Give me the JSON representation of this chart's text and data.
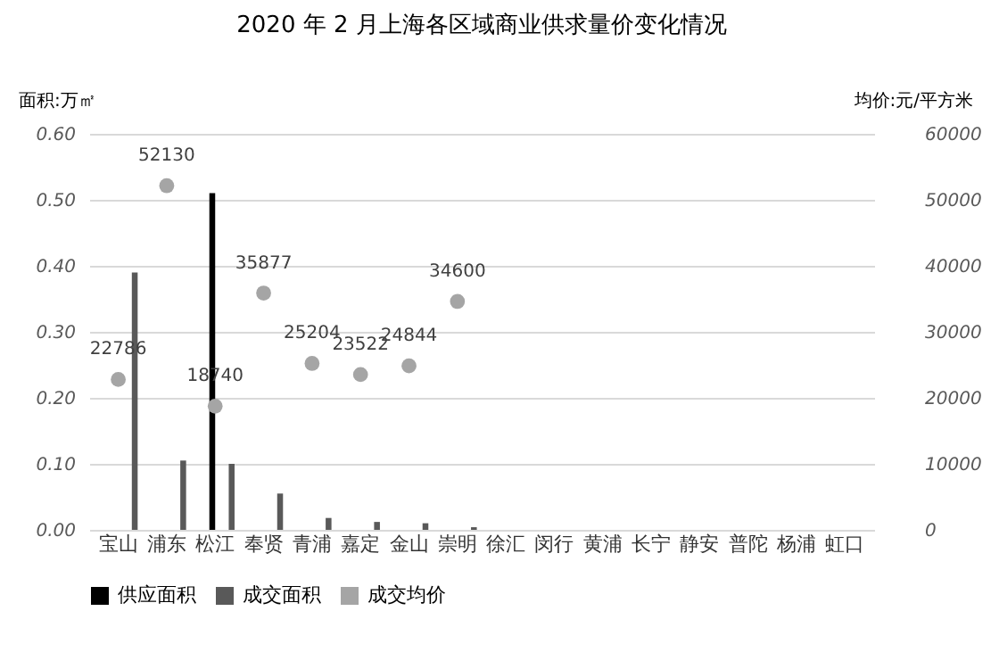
{
  "chart_data": {
    "type": "bar",
    "title": "2020 年 2 月上海各区域商业供求量价变化情况",
    "ylabel": "面积:万㎡",
    "y2label": "均价:元/平方米",
    "categories": [
      "宝山",
      "浦东",
      "松江",
      "奉贤",
      "青浦",
      "嘉定",
      "金山",
      "崇明",
      "徐汇",
      "闵行",
      "黄浦",
      "长宁",
      "静安",
      "普陀",
      "杨浦",
      "虹口"
    ],
    "series": [
      {
        "name": "供应面积",
        "type": "bar",
        "color": "#000000",
        "values": [
          null,
          null,
          0.51,
          null,
          null,
          null,
          null,
          null,
          null,
          null,
          null,
          null,
          null,
          null,
          null,
          null
        ]
      },
      {
        "name": "成交面积",
        "type": "bar",
        "color": "#595959",
        "values": [
          0.39,
          0.105,
          0.1,
          0.055,
          0.018,
          0.012,
          0.01,
          0.004,
          null,
          null,
          null,
          null,
          null,
          null,
          null,
          null
        ]
      },
      {
        "name": "成交均价",
        "type": "scatter",
        "axis": "y2",
        "color": "#a5a5a5",
        "values": [
          22786,
          52130,
          18740,
          35877,
          25204,
          23522,
          24844,
          34600,
          null,
          null,
          null,
          null,
          null,
          null,
          null,
          null
        ],
        "value_labels": [
          "22786",
          "52130",
          "18740",
          "35877",
          "25204",
          "23522",
          "24844",
          "34600",
          null,
          null,
          null,
          null,
          null,
          null,
          null,
          null
        ]
      }
    ],
    "ylim": [
      0,
      0.6
    ],
    "yticks": [
      {
        "value": 0,
        "label": "0.00"
      },
      {
        "value": 0.1,
        "label": "0.10"
      },
      {
        "value": 0.2,
        "label": "0.20"
      },
      {
        "value": 0.3,
        "label": "0.30"
      },
      {
        "value": 0.4,
        "label": "0.40"
      },
      {
        "value": 0.5,
        "label": "0.50"
      },
      {
        "value": 0.6,
        "label": "0.60"
      }
    ],
    "y2lim": [
      0,
      60000
    ],
    "y2ticks": [
      0,
      10000,
      20000,
      30000,
      40000,
      50000,
      60000
    ],
    "grid": "y",
    "legend": "bottom",
    "marker": "circle"
  }
}
